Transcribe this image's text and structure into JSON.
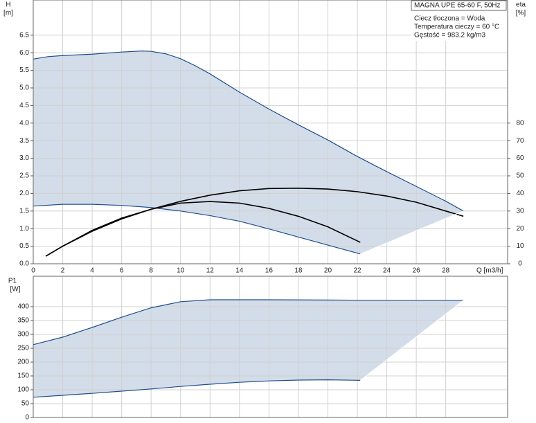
{
  "chart_data": [
    {
      "type": "line",
      "xlabel": "Q [m3/h]",
      "ylabel": "H",
      "yunit": "[m]",
      "y2label": "eta",
      "y2unit": "[%]",
      "annotations": [
        "MAGNA UPE 65-60 F, 50Hz",
        "Ciecz tłoczona = Woda",
        "Temperatura cieczy = 60 °C",
        "Gęstość = 983.2 kg/m3"
      ],
      "xlim": [
        0,
        32.2
      ],
      "ylim": [
        0,
        7.5
      ],
      "y2lim": [
        0,
        150
      ],
      "xticks": [
        0,
        2,
        4,
        6,
        8,
        10,
        12,
        14,
        16,
        18,
        20,
        22,
        24,
        26,
        28
      ],
      "yticks": [
        {
          "value": 0,
          "label": "0.0"
        },
        0.5,
        {
          "value": 1,
          "label": "1.0"
        },
        1.5,
        {
          "value": 2,
          "label": "2.0"
        },
        2.5,
        {
          "value": 3,
          "label": "3.0"
        },
        3.5,
        {
          "value": 4,
          "label": "4.0"
        },
        4.5,
        {
          "value": 5,
          "label": "5.0"
        },
        5.5,
        {
          "value": 6,
          "label": "6.0"
        },
        6.5
      ],
      "y2ticks": [
        0,
        10,
        20,
        30,
        40,
        50,
        60,
        70,
        80
      ],
      "xtick_labels": true,
      "grid": true,
      "fill": "#d3dde9",
      "series": [
        {
          "color": "#1f4e8c",
          "x": [
            0,
            1,
            2,
            4,
            6,
            7.4,
            8,
            9,
            10,
            11,
            12,
            14,
            16,
            18,
            20,
            22,
            24,
            26,
            28,
            29.2
          ],
          "values": [
            5.82,
            5.89,
            5.92,
            5.96,
            6.02,
            6.05,
            6.04,
            5.97,
            5.83,
            5.63,
            5.4,
            4.88,
            4.4,
            3.95,
            3.52,
            3.05,
            2.62,
            2.2,
            1.78,
            1.5
          ]
        },
        {
          "color": "#1f4e8c",
          "x": [
            0,
            2,
            4,
            6,
            8,
            10,
            12,
            14,
            16,
            18,
            20,
            22.2
          ],
          "values": [
            1.64,
            1.69,
            1.69,
            1.66,
            1.6,
            1.5,
            1.37,
            1.21,
            0.99,
            0.76,
            0.53,
            0.28
          ]
        },
        {
          "color": "#000000",
          "axis": "y2",
          "x": [
            0.85,
            2,
            4,
            6,
            8,
            10,
            12,
            14,
            16,
            18,
            20,
            22,
            24,
            26,
            28,
            29.2
          ],
          "values": [
            4.3,
            10,
            18.5,
            25.5,
            31,
            35.5,
            39,
            41.5,
            42.8,
            43,
            42.5,
            41,
            38.5,
            35,
            30,
            27
          ]
        },
        {
          "color": "#000000",
          "axis": "y2",
          "x": [
            0.85,
            2,
            4,
            6,
            8,
            10,
            12,
            14,
            16,
            18,
            20,
            22.2
          ],
          "values": [
            4.3,
            10,
            19,
            26,
            31,
            34.5,
            35.4,
            34.5,
            31.5,
            27,
            21,
            12.2
          ]
        }
      ]
    },
    {
      "type": "line",
      "ylabel": "P1",
      "yunit": "[W]",
      "xlim": [
        0,
        32.2
      ],
      "ylim": [
        0,
        510
      ],
      "xticks": [
        0,
        2,
        4,
        6,
        8,
        10,
        12,
        14,
        16,
        18,
        20,
        22,
        24,
        26,
        28
      ],
      "yticks": [
        0,
        50,
        100,
        150,
        200,
        250,
        300,
        350,
        400
      ],
      "xtick_labels": false,
      "grid": true,
      "fill": "#d3dde9",
      "series": [
        {
          "color": "#1f4e8c",
          "x": [
            0,
            2,
            4,
            6,
            8,
            10,
            12,
            14,
            16,
            20,
            24,
            29.2
          ],
          "values": [
            263,
            290,
            325,
            362,
            396,
            418,
            425,
            425,
            425,
            424,
            423,
            423
          ]
        },
        {
          "color": "#1f4e8c",
          "x": [
            0,
            2,
            4,
            6,
            8,
            10,
            12,
            14,
            16,
            18,
            20,
            22.2
          ],
          "values": [
            73,
            80,
            87,
            95,
            103,
            112,
            120,
            127,
            132,
            135,
            136,
            134
          ]
        }
      ]
    }
  ]
}
